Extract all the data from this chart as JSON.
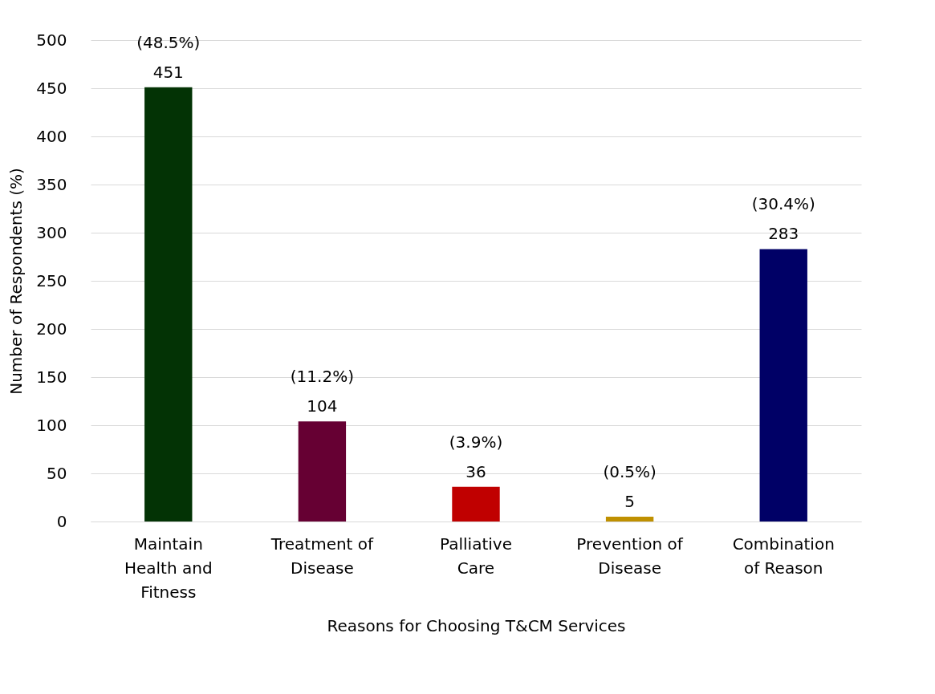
{
  "chart_data": {
    "type": "bar",
    "xlabel": "Reasons for Choosing T&CM Services",
    "ylabel": "Number of Respondents (%)",
    "categories": [
      "Maintain Health and Fitness",
      "Treatment of Disease",
      "Palliative Care",
      "Prevention of Disease",
      "Combination of Reason"
    ],
    "values": [
      451,
      104,
      36,
      5,
      283
    ],
    "colors": [
      "#033305",
      "#660033",
      "#c00000",
      "#bf9000",
      "#000066"
    ],
    "data_labels": true,
    "annotations": [
      {
        "text": "(48.5%)",
        "x": "Maintain Health and Fitness",
        "y": 451
      },
      {
        "text": "(11.2%)",
        "x": "Treatment of Disease",
        "y": 104
      },
      {
        "text": "(3.9%)",
        "x": "Palliative Care",
        "y": 36
      },
      {
        "text": "(0.5%)",
        "x": "Prevention of Disease",
        "y": 5
      },
      {
        "text": "(30.4%)",
        "x": "Combination of Reason",
        "y": 283
      }
    ],
    "ylim": [
      0,
      500
    ],
    "yticks": [
      0,
      50,
      100,
      150,
      200,
      250,
      300,
      350,
      400,
      450,
      500
    ],
    "grid": "y"
  }
}
